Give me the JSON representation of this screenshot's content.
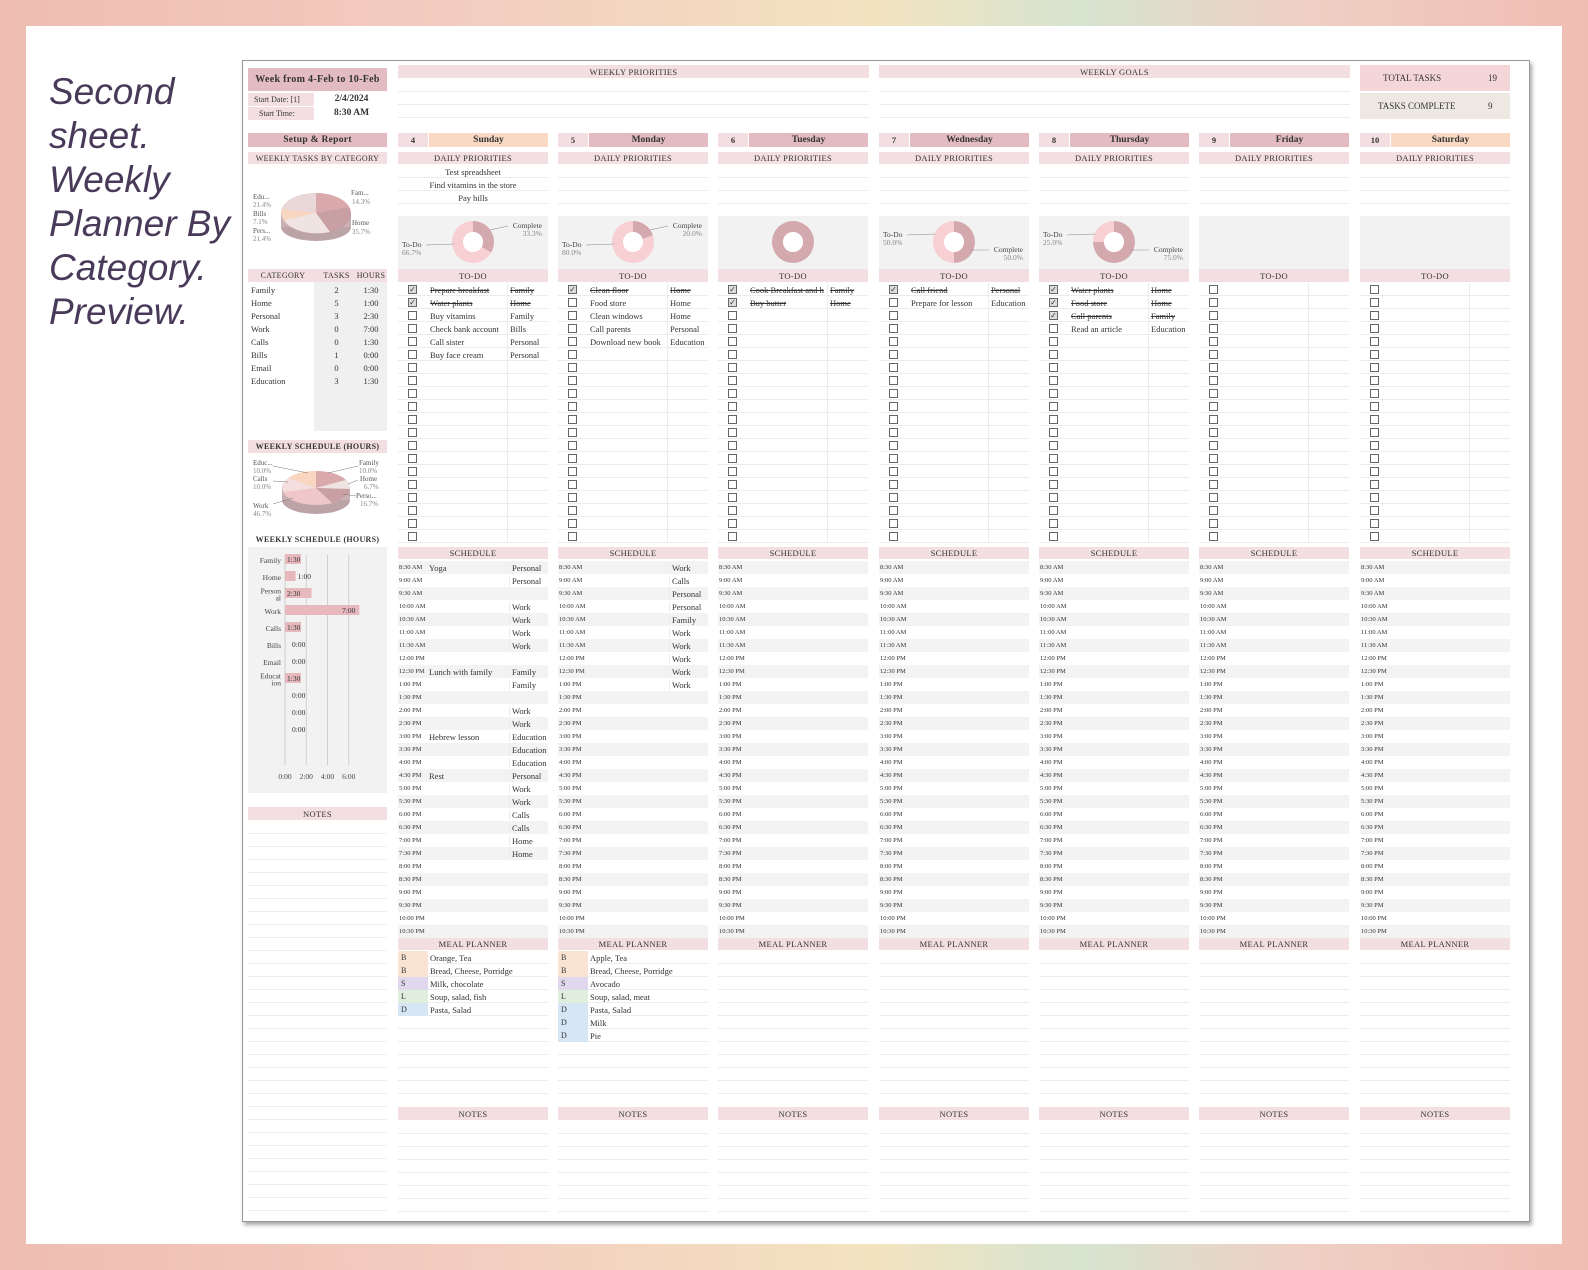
{
  "caption": [
    "Second",
    "sheet.",
    "Weekly",
    "Planner By",
    "Category.",
    "Preview."
  ],
  "week": {
    "title": "Week from 4-Feb to 10-Feb",
    "start_date_label": "Start Date: [1]",
    "start_date": "2/4/2024",
    "start_time_label": "Start Time:",
    "start_time": "8:30 AM"
  },
  "weekly_priorities_label": "WEEKLY PRIORITIES",
  "weekly_goals_label": "WEEKLY GOALS",
  "totals": {
    "total_label": "TOTAL  TASKS",
    "total_value": "19",
    "complete_label": "TASKS  COMPLETE",
    "complete_value": "9"
  },
  "sidebar": {
    "setup_label": "Setup & Report",
    "tasks_by_cat_label": "WEEKLY TASKS BY CATEGORY",
    "pie1": [
      {
        "label": "Edu...",
        "pct": "21.4%"
      },
      {
        "label": "Bills",
        "pct": "7.1%"
      },
      {
        "label": "Pers...",
        "pct": "21.4%"
      },
      {
        "label": "Fam...",
        "pct": "14.3%"
      },
      {
        "label": "Home",
        "pct": "35.7%"
      }
    ],
    "table_headers": [
      "CATEGORY",
      "TASKS",
      "HOURS"
    ],
    "categories": [
      {
        "name": "Family",
        "tasks": "2",
        "hours": "1:30"
      },
      {
        "name": "Home",
        "tasks": "5",
        "hours": "1:00"
      },
      {
        "name": "Personal",
        "tasks": "3",
        "hours": "2:30"
      },
      {
        "name": "Work",
        "tasks": "0",
        "hours": "7:00"
      },
      {
        "name": "Calls",
        "tasks": "0",
        "hours": "1:30"
      },
      {
        "name": "Bills",
        "tasks": "1",
        "hours": "0:00"
      },
      {
        "name": "Email",
        "tasks": "0",
        "hours": "0:00"
      },
      {
        "name": "Education",
        "tasks": "3",
        "hours": "1:30"
      }
    ],
    "schedule_label_1": "WEEKLY SCHEDULE (HOURS)",
    "pie2": [
      {
        "label": "Educ...",
        "pct": "10.0%"
      },
      {
        "label": "Calls",
        "pct": "10.0%"
      },
      {
        "label": "Work",
        "pct": "46.7%"
      },
      {
        "label": "Family",
        "pct": "10.0%"
      },
      {
        "label": "Home",
        "pct": "6.7%"
      },
      {
        "label": "Perso...",
        "pct": "16.7%"
      }
    ],
    "schedule_label_2": "WEEKLY SCHEDULE (HOURS)",
    "notes_label": "NOTES"
  },
  "chart_data": {
    "type": "bar",
    "orientation": "horizontal",
    "categories": [
      "Family",
      "Home",
      "Person al",
      "Work",
      "Calls",
      "Bills",
      "Email",
      "Educat ion",
      "",
      "",
      ""
    ],
    "values": [
      1.5,
      1.0,
      2.5,
      7.0,
      1.5,
      0,
      0,
      1.5,
      0,
      0,
      0
    ],
    "value_labels": [
      "1:30",
      "1:00",
      "2:30",
      "7:00",
      "1:30",
      "0:00",
      "0:00",
      "1:30",
      "0:00",
      "0:00",
      "0:00"
    ],
    "x_ticks": [
      "0:00",
      "2:00",
      "4:00",
      "6:00"
    ],
    "xlim": [
      0,
      8
    ]
  },
  "labels": {
    "daily_priorities": "DAILY PRIORITIES",
    "todo": "TO-DO",
    "schedule": "SCHEDULE",
    "meal_planner": "MEAL PLANNER",
    "notes": "NOTES"
  },
  "times": [
    "8:30 AM",
    "9:00 AM",
    "9:30 AM",
    "10:00 AM",
    "10:30 AM",
    "11:00 AM",
    "11:30 AM",
    "12:00 PM",
    "12:30 PM",
    "1:00 PM",
    "1:30 PM",
    "2:00 PM",
    "2:30 PM",
    "3:00 PM",
    "3:30 PM",
    "4:00 PM",
    "4:30 PM",
    "5:00 PM",
    "5:30 PM",
    "6:00 PM",
    "6:30 PM",
    "7:00 PM",
    "7:30 PM",
    "8:00 PM",
    "8:30 PM",
    "9:00 PM",
    "9:30 PM",
    "10:00 PM",
    "10:30 PM"
  ],
  "colors": {
    "header": "#e2bcc0",
    "light_header": "#f3dfe1",
    "weekend": "#f9d9c4",
    "gray": "#f0f0f0",
    "breakfast": "#fbe3d3",
    "snack": "#e1d8ee",
    "lunch": "#dfeedd",
    "dinner": "#d6e6f5"
  },
  "days": [
    {
      "num": "4",
      "name": "Sunday",
      "weekend": true,
      "priorities": [
        "Test spreadsheet",
        "Find vitamins in the store",
        "Pay bills"
      ],
      "donut": {
        "todo_label": "To-Do",
        "todo_pct": "66.7%",
        "complete_label": "Complete",
        "complete_pct": "33.3%",
        "complete_frac": 0.333
      },
      "todos": [
        {
          "done": true,
          "text": "Prepare breakfast",
          "cat": "Family"
        },
        {
          "done": true,
          "text": "Water plants",
          "cat": "Home"
        },
        {
          "done": false,
          "text": "Buy vitamins",
          "cat": "Family"
        },
        {
          "done": false,
          "text": "Check bank account",
          "cat": "Bills"
        },
        {
          "done": false,
          "text": "Call sister",
          "cat": "Personal"
        },
        {
          "done": false,
          "text": "Buy face cream",
          "cat": "Personal"
        }
      ],
      "schedule": [
        [
          "Yoga",
          "Personal"
        ],
        [
          "",
          "Personal"
        ],
        [
          "",
          ""
        ],
        [
          "",
          "Work"
        ],
        [
          "",
          "Work"
        ],
        [
          "",
          "Work"
        ],
        [
          "",
          "Work"
        ],
        [
          "",
          ""
        ],
        [
          "Lunch with family",
          "Family"
        ],
        [
          "",
          "Family"
        ],
        [
          "",
          ""
        ],
        [
          "",
          "Work"
        ],
        [
          "",
          "Work"
        ],
        [
          "Hebrew lesson",
          "Education"
        ],
        [
          "",
          "Education"
        ],
        [
          "",
          "Education"
        ],
        [
          "Rest",
          "Personal"
        ],
        [
          "",
          "Work"
        ],
        [
          "",
          "Work"
        ],
        [
          "",
          "Calls"
        ],
        [
          "",
          "Calls"
        ],
        [
          "",
          "Home"
        ],
        [
          "",
          "Home"
        ]
      ],
      "meals": [
        {
          "t": "B",
          "text": "Orange, Tea"
        },
        {
          "t": "B",
          "text": "Bread, Cheese, Porridge"
        },
        {
          "t": "S",
          "text": "Milk, chocolate"
        },
        {
          "t": "L",
          "text": "Soup, salad, fish"
        },
        {
          "t": "D",
          "text": "Pasta, Salad"
        }
      ]
    },
    {
      "num": "5",
      "name": "Monday",
      "weekend": false,
      "priorities": [],
      "donut": {
        "todo_label": "To-Do",
        "todo_pct": "80.0%",
        "complete_label": "Complete",
        "complete_pct": "20.0%",
        "complete_frac": 0.2
      },
      "todos": [
        {
          "done": true,
          "text": "Clean floor",
          "cat": "Home"
        },
        {
          "done": false,
          "text": "Food store",
          "cat": "Home"
        },
        {
          "done": false,
          "text": "Clean windows",
          "cat": "Home"
        },
        {
          "done": false,
          "text": "Call parents",
          "cat": "Personal"
        },
        {
          "done": false,
          "text": "Download new book",
          "cat": "Education"
        }
      ],
      "schedule": [
        [
          "",
          "Work"
        ],
        [
          "",
          "Calls"
        ],
        [
          "",
          "Personal"
        ],
        [
          "",
          "Personal"
        ],
        [
          "",
          "Family"
        ],
        [
          "",
          "Work"
        ],
        [
          "",
          "Work"
        ],
        [
          "",
          "Work"
        ],
        [
          "",
          "Work"
        ],
        [
          "",
          "Work"
        ]
      ],
      "meals": [
        {
          "t": "B",
          "text": "Apple, Tea"
        },
        {
          "t": "B",
          "text": "Bread, Cheese, Porridge"
        },
        {
          "t": "S",
          "text": "Avocado"
        },
        {
          "t": "L",
          "text": "Soup, salad, meat"
        },
        {
          "t": "D",
          "text": "Pasta, Salad"
        },
        {
          "t": "D",
          "text": "Milk"
        },
        {
          "t": "D",
          "text": "Pie"
        }
      ]
    },
    {
      "num": "6",
      "name": "Tuesday",
      "weekend": false,
      "priorities": [],
      "donut": {
        "todo_label": "",
        "todo_pct": "",
        "complete_label": "",
        "complete_pct": "",
        "complete_frac": 0
      },
      "todos": [
        {
          "done": true,
          "text": "Cook Breakfast and h",
          "cat": "Family"
        },
        {
          "done": true,
          "text": "Buy butter",
          "cat": "Home"
        }
      ],
      "schedule": [],
      "meals": []
    },
    {
      "num": "7",
      "name": "Wednesday",
      "weekend": false,
      "priorities": [],
      "donut": {
        "todo_label": "To-Do",
        "todo_pct": "50.0%",
        "complete_label": "Complete",
        "complete_pct": "50.0%",
        "complete_frac": 0.5
      },
      "todos": [
        {
          "done": true,
          "text": "Call friend",
          "cat": "Personal"
        },
        {
          "done": false,
          "text": "Prepare for lesson",
          "cat": "Education"
        }
      ],
      "schedule": [],
      "meals": []
    },
    {
      "num": "8",
      "name": "Thursday",
      "weekend": false,
      "priorities": [],
      "donut": {
        "todo_label": "To-Do",
        "todo_pct": "25.0%",
        "complete_label": "Complete",
        "complete_pct": "75.0%",
        "complete_frac": 0.75
      },
      "todos": [
        {
          "done": true,
          "text": "Water plants",
          "cat": "Home"
        },
        {
          "done": true,
          "text": "Food store",
          "cat": "Home"
        },
        {
          "done": true,
          "text": "Call parents",
          "cat": "Family"
        },
        {
          "done": false,
          "text": "Read an article",
          "cat": "Education"
        }
      ],
      "schedule": [],
      "meals": []
    },
    {
      "num": "9",
      "name": "Friday",
      "weekend": false,
      "priorities": [],
      "donut": null,
      "todos": [],
      "schedule": [],
      "meals": []
    },
    {
      "num": "10",
      "name": "Saturday",
      "weekend": true,
      "priorities": [],
      "donut": null,
      "todos": [],
      "schedule": [],
      "meals": []
    }
  ]
}
